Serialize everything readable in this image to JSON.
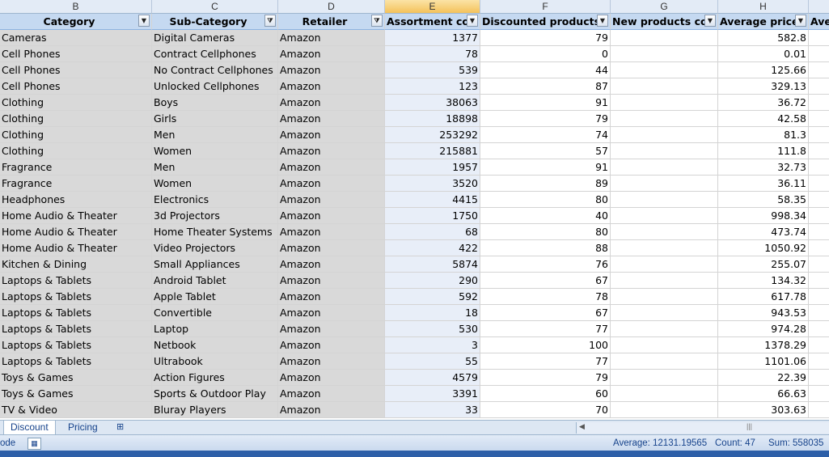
{
  "column_letters": [
    "B",
    "C",
    "D",
    "E",
    "F",
    "G",
    "H"
  ],
  "headers": [
    "Category",
    "Sub-Category",
    "Retailer",
    "Assortment cou",
    "Discounted products (",
    "New products cou",
    "Average price (",
    "Ave"
  ],
  "rows": [
    [
      "Cameras",
      "Digital Cameras",
      "Amazon",
      "1377",
      "79",
      "",
      "582.8"
    ],
    [
      "Cell Phones",
      "Contract Cellphones",
      "Amazon",
      "78",
      "0",
      "",
      "0.01"
    ],
    [
      "Cell Phones",
      "No Contract Cellphones",
      "Amazon",
      "539",
      "44",
      "",
      "125.66"
    ],
    [
      "Cell Phones",
      "Unlocked Cellphones",
      "Amazon",
      "123",
      "87",
      "",
      "329.13"
    ],
    [
      "Clothing",
      "Boys",
      "Amazon",
      "38063",
      "91",
      "",
      "36.72"
    ],
    [
      "Clothing",
      "Girls",
      "Amazon",
      "18898",
      "79",
      "",
      "42.58"
    ],
    [
      "Clothing",
      "Men",
      "Amazon",
      "253292",
      "74",
      "",
      "81.3"
    ],
    [
      "Clothing",
      "Women",
      "Amazon",
      "215881",
      "57",
      "",
      "111.8"
    ],
    [
      "Fragrance",
      "Men",
      "Amazon",
      "1957",
      "91",
      "",
      "32.73"
    ],
    [
      "Fragrance",
      "Women",
      "Amazon",
      "3520",
      "89",
      "",
      "36.11"
    ],
    [
      "Headphones",
      "Electronics",
      "Amazon",
      "4415",
      "80",
      "",
      "58.35"
    ],
    [
      "Home Audio & Theater",
      "3d Projectors",
      "Amazon",
      "1750",
      "40",
      "",
      "998.34"
    ],
    [
      "Home Audio & Theater",
      "Home Theater Systems",
      "Amazon",
      "68",
      "80",
      "",
      "473.74"
    ],
    [
      "Home Audio & Theater",
      "Video Projectors",
      "Amazon",
      "422",
      "88",
      "",
      "1050.92"
    ],
    [
      "Kitchen & Dining",
      "Small Appliances",
      "Amazon",
      "5874",
      "76",
      "",
      "255.07"
    ],
    [
      "Laptops & Tablets",
      "Android Tablet",
      "Amazon",
      "290",
      "67",
      "",
      "134.32"
    ],
    [
      "Laptops & Tablets",
      "Apple Tablet",
      "Amazon",
      "592",
      "78",
      "",
      "617.78"
    ],
    [
      "Laptops & Tablets",
      "Convertible",
      "Amazon",
      "18",
      "67",
      "",
      "943.53"
    ],
    [
      "Laptops & Tablets",
      "Laptop",
      "Amazon",
      "530",
      "77",
      "",
      "974.28"
    ],
    [
      "Laptops & Tablets",
      "Netbook",
      "Amazon",
      "3",
      "100",
      "",
      "1378.29"
    ],
    [
      "Laptops & Tablets",
      "Ultrabook",
      "Amazon",
      "55",
      "77",
      "",
      "1101.06"
    ],
    [
      "Toys & Games",
      "Action Figures",
      "Amazon",
      "4579",
      "79",
      "",
      "22.39"
    ],
    [
      "Toys & Games",
      "Sports & Outdoor Play",
      "Amazon",
      "3391",
      "60",
      "",
      "66.63"
    ],
    [
      "TV & Video",
      "Bluray Players",
      "Amazon",
      "33",
      "70",
      "",
      "303.63"
    ]
  ],
  "sheet_tabs": [
    "Discount",
    "Pricing"
  ],
  "status": {
    "mode": "ode",
    "average": "Average: 12131.19565",
    "count": "Count: 47",
    "sum": "Sum: 558035"
  }
}
